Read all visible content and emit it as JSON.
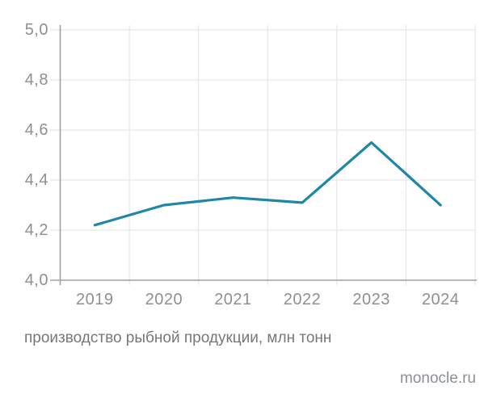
{
  "page": {
    "caption": "производство рыбной продукции, млн тонн",
    "watermark": "monocle.ru",
    "background": "#ffffff"
  },
  "chart_data": {
    "type": "line",
    "title": "",
    "xlabel": "",
    "ylabel": "",
    "categories": [
      "2019",
      "2020",
      "2021",
      "2022",
      "2023",
      "2024"
    ],
    "values": [
      4.22,
      4.3,
      4.33,
      4.31,
      4.55,
      4.3
    ],
    "series_name": "производство рыбной продукции, млн тонн",
    "ylim": [
      4.0,
      5.0
    ],
    "ytick_step": 0.2,
    "ytick_labels_top_to_bottom": [
      "5,0",
      "4,8",
      "4,6",
      "4,4",
      "4,2",
      "4,0"
    ],
    "decimal_separator": ",",
    "grid": true,
    "legend": "none",
    "style": {
      "line_color": "#1e87a8",
      "grid_color": "#e8e8ea",
      "axis_color": "#9fa1a3",
      "tick_label_color": "#8d9093",
      "caption_color": "#75787b",
      "watermark_color": "#8b9095"
    }
  }
}
